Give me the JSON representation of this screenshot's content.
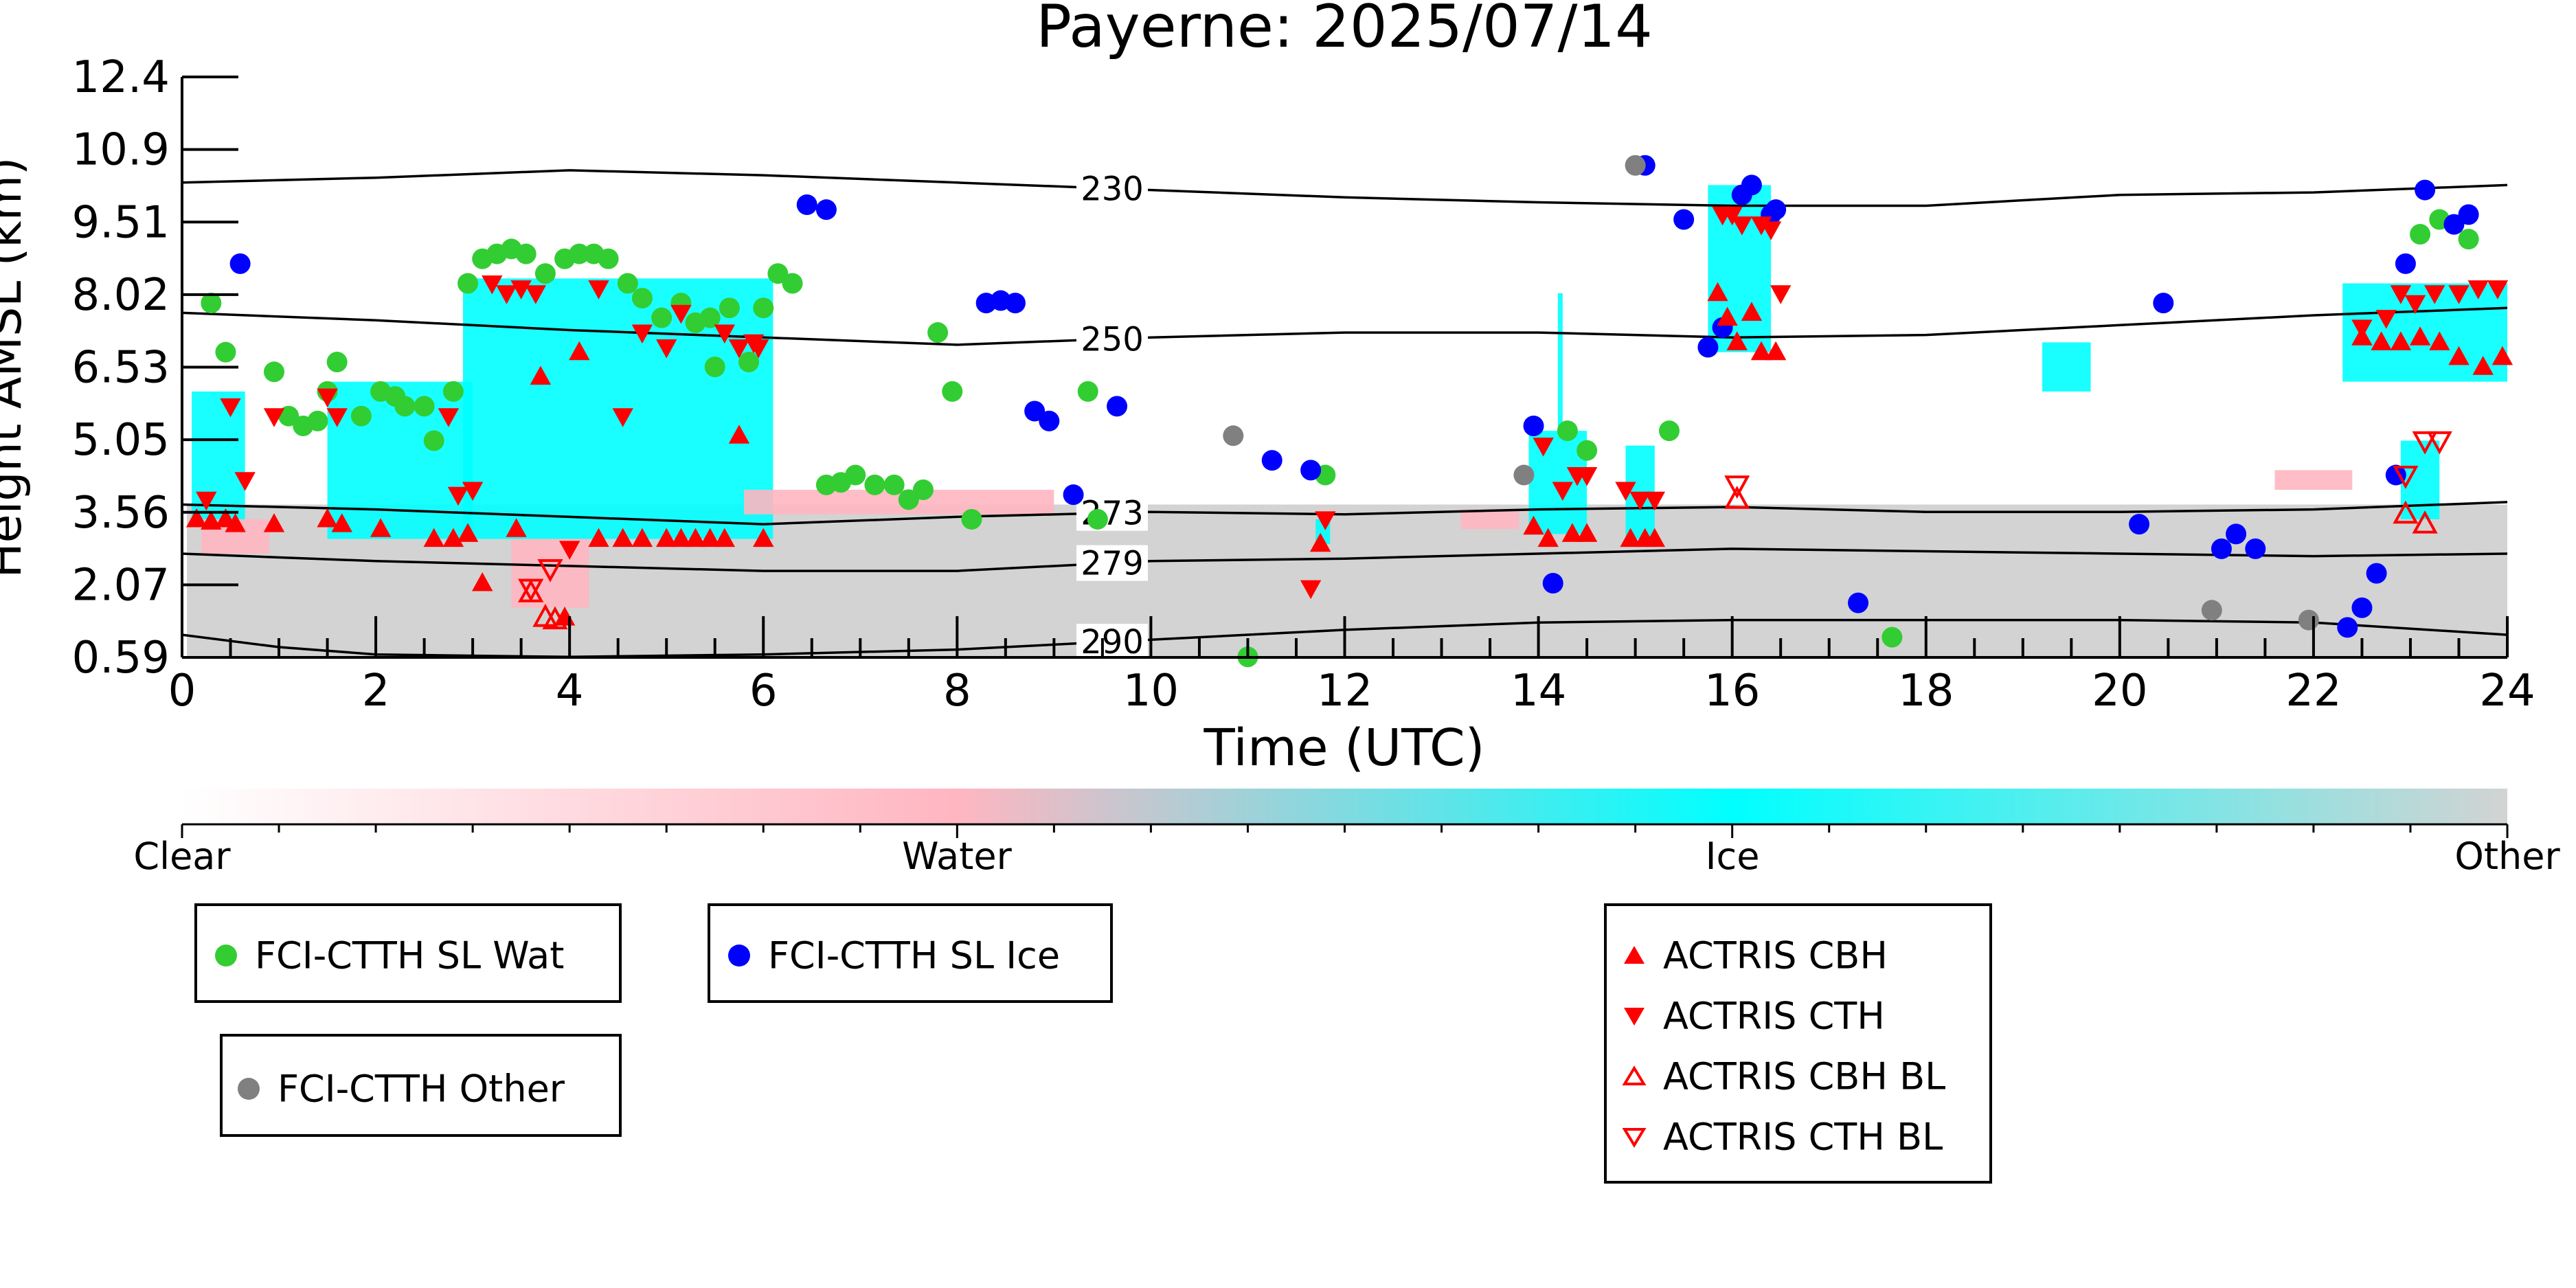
{
  "chart_data": {
    "type": "scatter",
    "title": "Payerne: 2025/07/14",
    "xlabel": "Time (UTC)",
    "ylabel": "Height AMSL (km)",
    "xlim": [
      0,
      24
    ],
    "ylim": [
      0.59,
      12.4
    ],
    "x_ticks": [
      0,
      2,
      4,
      6,
      8,
      10,
      12,
      14,
      16,
      18,
      20,
      22,
      24
    ],
    "y_ticks": [
      "0.59",
      "2.07",
      "3.56",
      "5.05",
      "6.53",
      "8.02",
      "9.51",
      "10.9",
      "12.4"
    ],
    "grid": false,
    "background_classification": {
      "colorbar_labels": [
        "Clear",
        "Water",
        "Ice",
        "Other"
      ],
      "colors": {
        "Clear": "#ffffff",
        "Water": "#ffb6c1",
        "Ice": "#00ffff",
        "Other": "#d3d3d3"
      },
      "blocks": [
        {
          "class": "Other",
          "x0": 0.05,
          "x1": 24,
          "y0": 0.59,
          "y1": 3.7
        },
        {
          "class": "Ice",
          "x0": 0.1,
          "x1": 0.65,
          "y0": 3.4,
          "y1": 6.0
        },
        {
          "class": "Ice",
          "x0": 1.5,
          "x1": 3.0,
          "y0": 3.0,
          "y1": 6.2
        },
        {
          "class": "Ice",
          "x0": 2.9,
          "x1": 6.1,
          "y0": 3.0,
          "y1": 8.3
        },
        {
          "class": "Ice",
          "x0": 11.7,
          "x1": 11.85,
          "y0": 2.9,
          "y1": 3.4
        },
        {
          "class": "Ice",
          "x0": 13.9,
          "x1": 14.5,
          "y0": 3.1,
          "y1": 5.2
        },
        {
          "class": "Ice",
          "x0": 14.2,
          "x1": 14.25,
          "y0": 5.2,
          "y1": 8.0
        },
        {
          "class": "Ice",
          "x0": 14.9,
          "x1": 15.2,
          "y0": 3.0,
          "y1": 4.9
        },
        {
          "class": "Ice",
          "x0": 15.75,
          "x1": 16.4,
          "y0": 6.8,
          "y1": 10.2
        },
        {
          "class": "Ice",
          "x0": 19.2,
          "x1": 19.7,
          "y0": 6.0,
          "y1": 7.0
        },
        {
          "class": "Ice",
          "x0": 22.3,
          "x1": 24,
          "y0": 6.2,
          "y1": 8.2
        },
        {
          "class": "Ice",
          "x0": 22.9,
          "x1": 23.3,
          "y0": 3.4,
          "y1": 5.0
        },
        {
          "class": "Water",
          "x0": 0.2,
          "x1": 0.9,
          "y0": 2.7,
          "y1": 3.4
        },
        {
          "class": "Water",
          "x0": 3.4,
          "x1": 4.2,
          "y0": 1.6,
          "y1": 3.0
        },
        {
          "class": "Water",
          "x0": 5.8,
          "x1": 9.0,
          "y0": 3.5,
          "y1": 4.0
        },
        {
          "class": "Water",
          "x0": 13.2,
          "x1": 13.8,
          "y0": 3.2,
          "y1": 3.6
        },
        {
          "class": "Water",
          "x0": 21.6,
          "x1": 22.4,
          "y0": 4.0,
          "y1": 4.4
        }
      ]
    },
    "isotherms": [
      {
        "label": "230",
        "x": [
          0,
          2,
          4,
          6,
          8,
          10,
          12,
          14,
          16,
          18,
          20,
          22,
          24
        ],
        "y": [
          10.25,
          10.35,
          10.5,
          10.4,
          10.25,
          10.1,
          9.95,
          9.85,
          9.78,
          9.78,
          10.0,
          10.05,
          10.2
        ]
      },
      {
        "label": "250",
        "x": [
          0,
          2,
          4,
          6,
          8,
          10,
          12,
          14,
          16,
          18,
          20,
          22,
          24
        ],
        "y": [
          7.6,
          7.45,
          7.25,
          7.1,
          6.95,
          7.1,
          7.2,
          7.2,
          7.1,
          7.15,
          7.35,
          7.55,
          7.7
        ]
      },
      {
        "label": "273",
        "x": [
          0,
          2,
          4,
          6,
          8,
          10,
          12,
          14,
          16,
          18,
          20,
          22,
          24
        ],
        "y": [
          3.7,
          3.6,
          3.45,
          3.3,
          3.45,
          3.55,
          3.5,
          3.6,
          3.65,
          3.55,
          3.55,
          3.6,
          3.75
        ]
      },
      {
        "label": "279",
        "x": [
          0,
          2,
          4,
          6,
          8,
          10,
          12,
          14,
          16,
          18,
          20,
          22,
          24
        ],
        "y": [
          2.7,
          2.55,
          2.45,
          2.35,
          2.35,
          2.55,
          2.6,
          2.7,
          2.8,
          2.75,
          2.7,
          2.65,
          2.7
        ]
      },
      {
        "label": "290",
        "x": [
          0,
          1,
          2,
          4,
          6,
          8,
          10,
          12,
          14,
          16,
          18,
          20,
          22,
          24
        ],
        "y": [
          1.05,
          0.8,
          0.65,
          0.6,
          0.65,
          0.75,
          0.95,
          1.15,
          1.3,
          1.35,
          1.35,
          1.35,
          1.3,
          1.05
        ]
      }
    ],
    "series": [
      {
        "name": "FCI-CTTH SL Wat",
        "marker": "circle",
        "color": "#32cd32",
        "x": [
          0.3,
          0.45,
          0.95,
          1.1,
          1.25,
          1.4,
          1.5,
          1.6,
          1.85,
          2.05,
          2.2,
          2.3,
          2.5,
          2.6,
          2.8,
          2.95,
          3.1,
          3.25,
          3.4,
          3.55,
          3.75,
          3.95,
          4.1,
          4.25,
          4.4,
          4.6,
          4.75,
          4.95,
          5.15,
          5.3,
          5.45,
          5.5,
          5.65,
          5.85,
          6.0,
          6.15,
          6.3,
          6.65,
          6.8,
          6.95,
          7.15,
          7.35,
          7.5,
          7.65,
          7.8,
          7.95,
          8.15,
          9.35,
          9.45,
          11.0,
          11.8,
          14.3,
          14.5,
          15.35,
          17.65,
          23.1,
          23.3,
          23.6
        ],
        "y": [
          7.8,
          6.8,
          6.4,
          5.5,
          5.3,
          5.4,
          6.0,
          6.6,
          5.5,
          6.0,
          5.9,
          5.7,
          5.7,
          5.0,
          6.0,
          8.2,
          8.7,
          8.8,
          8.9,
          8.8,
          8.4,
          8.7,
          8.8,
          8.8,
          8.7,
          8.2,
          7.9,
          7.5,
          7.8,
          7.4,
          7.5,
          6.5,
          7.7,
          6.6,
          7.7,
          8.4,
          8.2,
          4.1,
          4.15,
          4.3,
          4.1,
          4.1,
          3.8,
          4.0,
          7.2,
          6.0,
          3.4,
          6.0,
          3.4,
          0.6,
          4.3,
          5.2,
          4.8,
          5.2,
          1.0,
          9.2,
          9.5,
          9.1
        ]
      },
      {
        "name": "FCI-CTTH SL Ice",
        "marker": "circle",
        "color": "#0000ff",
        "x": [
          0.6,
          6.45,
          6.65,
          8.3,
          8.45,
          8.6,
          8.8,
          8.95,
          9.2,
          9.65,
          11.25,
          11.65,
          13.95,
          14.15,
          15.1,
          15.5,
          15.75,
          15.9,
          16.1,
          16.2,
          16.4,
          16.45,
          17.3,
          20.2,
          20.45,
          21.05,
          21.2,
          21.4,
          22.35,
          22.5,
          22.65,
          22.85,
          22.95,
          23.15,
          23.45,
          23.6
        ],
        "y": [
          8.6,
          9.8,
          9.7,
          7.8,
          7.85,
          7.8,
          5.6,
          5.4,
          3.9,
          5.7,
          4.6,
          4.4,
          5.3,
          2.1,
          10.6,
          9.5,
          6.9,
          7.3,
          10.0,
          10.2,
          9.6,
          9.7,
          1.7,
          3.3,
          7.8,
          2.8,
          3.1,
          2.8,
          1.2,
          1.6,
          2.3,
          4.3,
          8.6,
          10.1,
          9.4,
          9.6
        ]
      },
      {
        "name": "FCI-CTTH Other",
        "marker": "circle",
        "color": "#808080",
        "x": [
          10.85,
          13.85,
          15.0,
          20.95,
          21.95
        ],
        "y": [
          5.1,
          4.3,
          10.6,
          1.55,
          1.35
        ]
      },
      {
        "name": "ACTRIS CBH",
        "marker": "triangle-up",
        "color": "#ff0000",
        "filled": true,
        "x": [
          0.15,
          0.3,
          0.45,
          0.55,
          0.95,
          1.5,
          1.65,
          2.05,
          2.6,
          2.8,
          2.95,
          3.1,
          3.45,
          3.7,
          3.95,
          4.1,
          4.3,
          4.55,
          4.75,
          5.0,
          5.15,
          5.3,
          5.45,
          5.6,
          5.75,
          6.0,
          11.75,
          13.95,
          14.1,
          14.35,
          14.5,
          14.95,
          15.1,
          15.2,
          15.85,
          15.95,
          16.05,
          16.2,
          16.3,
          16.45,
          22.5,
          22.7,
          22.9,
          23.1,
          23.3,
          23.5,
          23.75,
          23.95
        ],
        "y": [
          3.4,
          3.35,
          3.4,
          3.3,
          3.3,
          3.4,
          3.3,
          3.2,
          3.0,
          3.0,
          3.1,
          2.1,
          3.2,
          6.3,
          1.4,
          6.8,
          3.0,
          3.0,
          3.0,
          3.0,
          3.0,
          3.0,
          3.0,
          3.0,
          5.1,
          3.0,
          2.9,
          3.25,
          3.0,
          3.1,
          3.1,
          3.0,
          3.0,
          3.0,
          8.0,
          7.5,
          7.0,
          7.6,
          6.8,
          6.8,
          7.1,
          7.0,
          7.0,
          7.1,
          7.0,
          6.7,
          6.5,
          6.7
        ]
      },
      {
        "name": "ACTRIS CTH",
        "marker": "triangle-down",
        "color": "#ff0000",
        "filled": true,
        "x": [
          0.25,
          0.5,
          0.65,
          0.95,
          1.5,
          1.6,
          2.75,
          2.85,
          3.0,
          3.2,
          3.35,
          3.5,
          3.65,
          4.0,
          4.3,
          4.55,
          4.75,
          5.0,
          5.15,
          5.6,
          5.75,
          5.9,
          5.95,
          11.65,
          11.8,
          14.05,
          14.25,
          14.4,
          14.5,
          14.9,
          15.05,
          15.2,
          15.9,
          16.0,
          16.1,
          16.3,
          16.4,
          16.5,
          22.5,
          22.75,
          22.9,
          23.05,
          23.25,
          23.5,
          23.7,
          23.9
        ],
        "y": [
          3.8,
          5.7,
          4.2,
          5.5,
          5.9,
          5.5,
          5.5,
          3.9,
          4.0,
          8.2,
          8.0,
          8.1,
          8.0,
          2.8,
          8.1,
          5.5,
          7.2,
          6.9,
          7.6,
          7.2,
          6.9,
          7.0,
          6.9,
          2.0,
          3.4,
          4.9,
          4.0,
          4.3,
          4.3,
          4.0,
          3.8,
          3.8,
          9.6,
          9.6,
          9.4,
          9.4,
          9.3,
          8.0,
          7.3,
          7.5,
          8.0,
          7.8,
          8.0,
          8.0,
          8.1,
          8.1
        ]
      },
      {
        "name": "ACTRIS CBH BL",
        "marker": "triangle-up",
        "color": "#ff0000",
        "filled": false,
        "x": [
          3.6,
          3.75,
          3.85,
          16.05,
          22.95,
          23.15
        ],
        "y": [
          1.9,
          1.4,
          1.35,
          3.8,
          3.5,
          3.3
        ]
      },
      {
        "name": "ACTRIS CTH BL",
        "marker": "triangle-down",
        "color": "#ff0000",
        "filled": false,
        "x": [
          3.6,
          3.8,
          16.05,
          22.95,
          23.15,
          23.3
        ],
        "y": [
          2.0,
          2.4,
          4.1,
          4.3,
          5.0,
          5.0
        ]
      }
    ]
  },
  "legends": {
    "box1": {
      "label": "FCI-CTTH SL Wat"
    },
    "box2": {
      "label": "FCI-CTTH SL Ice"
    },
    "box3": {
      "label": "FCI-CTTH Other"
    },
    "box4": [
      "ACTRIS CBH",
      "ACTRIS CTH",
      "ACTRIS CBH BL",
      "ACTRIS CTH BL"
    ]
  }
}
